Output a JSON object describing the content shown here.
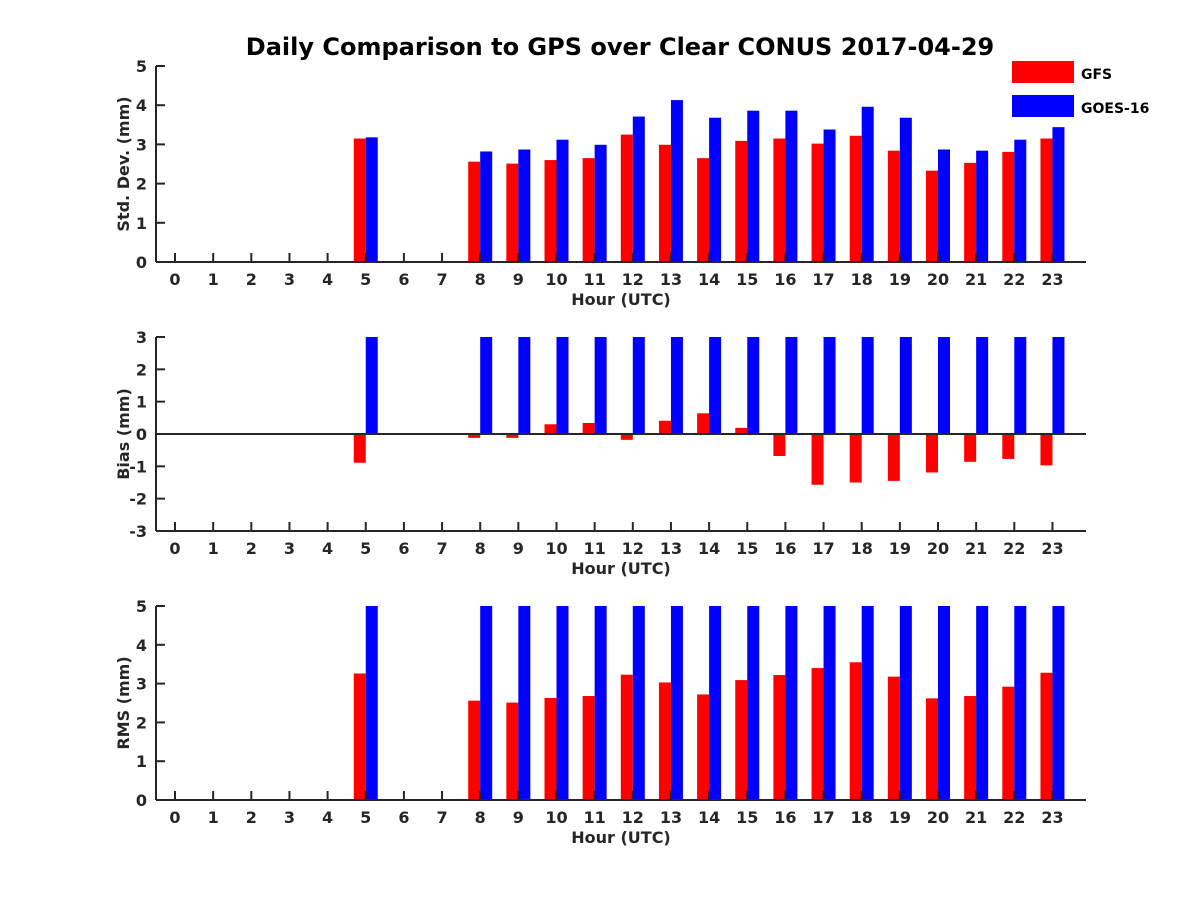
{
  "title": "Daily Comparison to GPS over Clear CONUS 2017-04-29",
  "colors": {
    "GFS": "#ff0000",
    "GOES-16": "#0000ff",
    "axis": "#262626"
  },
  "legend": {
    "placement": "top-right",
    "items": [
      "GFS",
      "GOES-16"
    ]
  },
  "chart_data": [
    {
      "type": "bar",
      "title": "Daily Comparison to GPS over Clear CONUS 2017-04-29",
      "xlabel": "Hour (UTC)",
      "ylabel": "Std. Dev. (mm)",
      "ylim": [
        0,
        5
      ],
      "yticks": [
        0,
        1,
        2,
        3,
        4,
        5
      ],
      "grid": false,
      "categories": [
        0,
        1,
        2,
        3,
        4,
        5,
        6,
        7,
        8,
        9,
        10,
        11,
        12,
        13,
        14,
        15,
        16,
        17,
        18,
        19,
        20,
        21,
        22,
        23
      ],
      "series": [
        {
          "name": "GFS",
          "values": [
            null,
            null,
            null,
            null,
            null,
            3.15,
            null,
            null,
            2.56,
            2.51,
            2.6,
            2.65,
            3.25,
            2.99,
            2.65,
            3.09,
            3.15,
            3.02,
            3.22,
            2.84,
            2.33,
            2.53,
            2.81,
            3.15
          ]
        },
        {
          "name": "GOES-16",
          "values": [
            null,
            null,
            null,
            null,
            null,
            3.18,
            null,
            null,
            2.82,
            2.87,
            3.12,
            2.99,
            3.71,
            4.13,
            3.68,
            3.86,
            3.86,
            3.38,
            3.96,
            3.68,
            2.87,
            2.84,
            3.12,
            3.44
          ]
        }
      ]
    },
    {
      "type": "bar",
      "title": "",
      "xlabel": "Hour (UTC)",
      "ylabel": "Bias (mm)",
      "ylim": [
        -3,
        3
      ],
      "yticks": [
        -3,
        -2,
        -1,
        0,
        1,
        2,
        3
      ],
      "grid": false,
      "categories": [
        0,
        1,
        2,
        3,
        4,
        5,
        6,
        7,
        8,
        9,
        10,
        11,
        12,
        13,
        14,
        15,
        16,
        17,
        18,
        19,
        20,
        21,
        22,
        23
      ],
      "series": [
        {
          "name": "GFS",
          "values": [
            null,
            null,
            null,
            null,
            null,
            -0.89,
            null,
            null,
            -0.12,
            -0.12,
            0.3,
            0.34,
            -0.18,
            0.41,
            0.64,
            0.19,
            -0.68,
            -1.57,
            -1.5,
            -1.45,
            -1.19,
            -0.86,
            -0.77,
            -0.97
          ]
        },
        {
          "name": "GOES-16",
          "values": [
            null,
            null,
            null,
            null,
            null,
            3,
            null,
            null,
            3,
            3,
            3,
            3,
            3,
            3,
            3,
            3,
            3,
            3,
            3,
            3,
            3,
            3,
            3,
            3
          ]
        }
      ]
    },
    {
      "type": "bar",
      "title": "",
      "xlabel": "Hour (UTC)",
      "ylabel": "RMS (mm)",
      "ylim": [
        0,
        5
      ],
      "yticks": [
        0,
        1,
        2,
        3,
        4,
        5
      ],
      "grid": false,
      "categories": [
        0,
        1,
        2,
        3,
        4,
        5,
        6,
        7,
        8,
        9,
        10,
        11,
        12,
        13,
        14,
        15,
        16,
        17,
        18,
        19,
        20,
        21,
        22,
        23
      ],
      "series": [
        {
          "name": "GFS",
          "values": [
            null,
            null,
            null,
            null,
            null,
            3.26,
            null,
            null,
            2.56,
            2.51,
            2.63,
            2.68,
            3.23,
            3.03,
            2.72,
            3.09,
            3.22,
            3.4,
            3.55,
            3.18,
            2.62,
            2.68,
            2.92,
            3.28
          ]
        },
        {
          "name": "GOES-16",
          "values": [
            null,
            null,
            null,
            null,
            null,
            5,
            null,
            null,
            5,
            5,
            5,
            5,
            5,
            5,
            5,
            5,
            5,
            5,
            5,
            5,
            5,
            5,
            5,
            5
          ]
        }
      ]
    }
  ]
}
